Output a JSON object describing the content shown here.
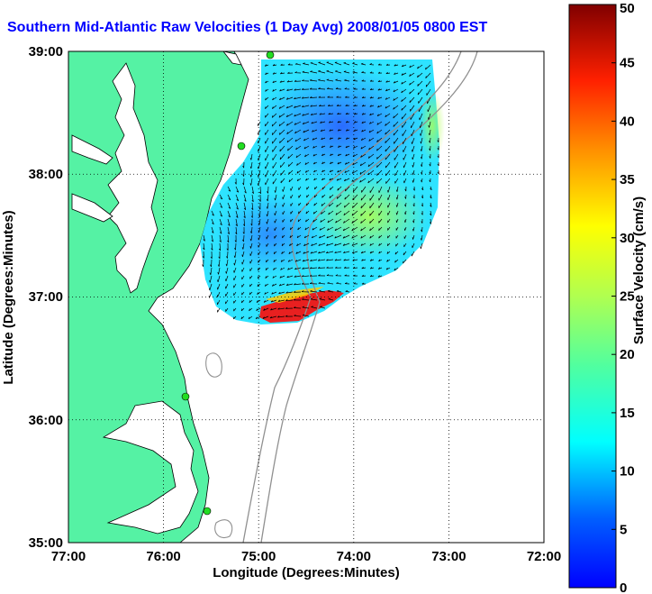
{
  "title": "Southern Mid-Atlantic Raw Velocities (1 Day Avg) 2008/01/05 0800 EST",
  "xlabel": "Longitude (Degrees:Minutes)",
  "ylabel": "Latitude (Degrees:Minutes)",
  "colorbar_label": "Surface Velocity (cm/s)",
  "x_ticks": [
    "77:00",
    "76:00",
    "75:00",
    "74:00",
    "73:00",
    "72:00"
  ],
  "y_ticks": [
    "39:00",
    "38:00",
    "37:00",
    "36:00",
    "35:00"
  ],
  "colorbar_ticks": [
    "0",
    "5",
    "10",
    "15",
    "20",
    "25",
    "30",
    "35",
    "40",
    "45",
    "50"
  ],
  "colors": {
    "land": "#55f2a4",
    "title": "#0000ff",
    "coast": "#000000",
    "bathymetry": "#909090",
    "arrow": "#000000",
    "site_marker": "#22dd22"
  },
  "chart_data": {
    "type": "heatmap",
    "xlim": [
      -77,
      -72
    ],
    "ylim": [
      35,
      39
    ],
    "colorbar_range": [
      0,
      50
    ],
    "colorbar_unit": "cm/s",
    "colormap": "jet",
    "grid": true,
    "legend": "colorbar-right"
  }
}
